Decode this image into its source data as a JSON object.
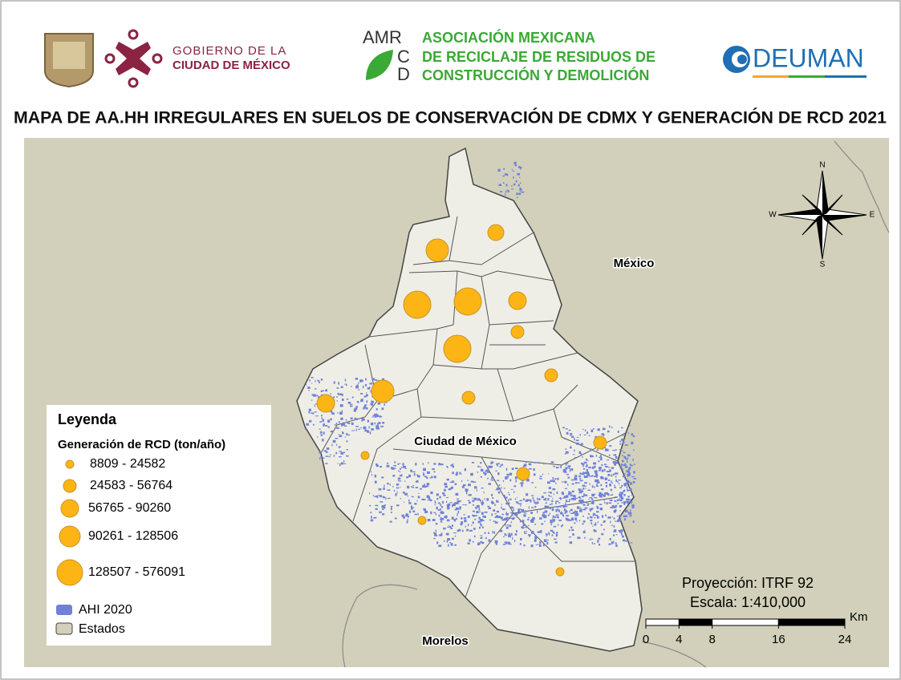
{
  "header": {
    "gobierno": [
      "GOBIERNO DE LA",
      "CIUDAD DE MÉXICO"
    ],
    "amr": {
      "letters": [
        "AMR",
        "C",
        "D"
      ],
      "lines": [
        "ASOCIACIÓN MEXICANA",
        "DE RECICLAJE DE RESIDUOS DE",
        "CONSTRUCCIÓN Y DEMOLICIÓN"
      ]
    },
    "deuman": "DEUMAN"
  },
  "title": "MAPA DE AA.HH IRREGULARES EN SUELOS DE CONSERVACIÓN DE CDMX Y GENERACIÓN DE RCD 2021",
  "map": {
    "labels": {
      "mexico": "México",
      "cdmx": "Ciudad de México",
      "morelos": "Morelos"
    },
    "compass": {
      "n": "N",
      "s": "S",
      "e": "E",
      "w": "W"
    }
  },
  "legend": {
    "title": "Leyenda",
    "subtitle": "Generación de RCD (ton/año)",
    "classes": [
      "8809 - 24582",
      "24583 - 56764",
      "56765 - 90260",
      "90261 - 128506",
      "128507 - 576091"
    ],
    "ahi": "AHI 2020",
    "estados": "Estados"
  },
  "projection": "Proyección: ITRF 92",
  "scale": "Escala: 1:410,000",
  "scale_bar": {
    "unit": "Km",
    "ticks": [
      0,
      4,
      8,
      16,
      24
    ]
  }
}
